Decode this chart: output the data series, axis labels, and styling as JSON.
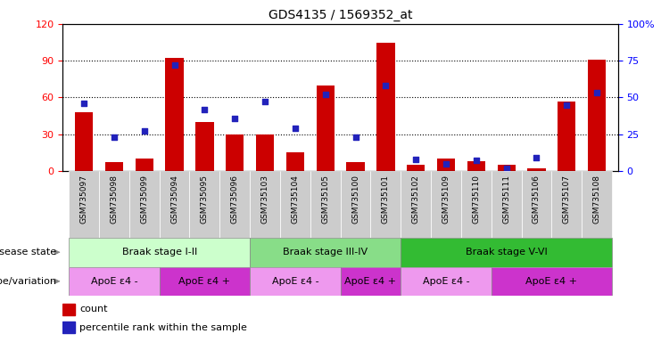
{
  "title": "GDS4135 / 1569352_at",
  "samples": [
    "GSM735097",
    "GSM735098",
    "GSM735099",
    "GSM735094",
    "GSM735095",
    "GSM735096",
    "GSM735103",
    "GSM735104",
    "GSM735105",
    "GSM735100",
    "GSM735101",
    "GSM735102",
    "GSM735109",
    "GSM735110",
    "GSM735111",
    "GSM735106",
    "GSM735107",
    "GSM735108"
  ],
  "counts": [
    48,
    7,
    10,
    92,
    40,
    30,
    30,
    15,
    70,
    7,
    105,
    5,
    10,
    8,
    5,
    2,
    57,
    91
  ],
  "percentiles": [
    46,
    23,
    27,
    72,
    42,
    36,
    47,
    29,
    52,
    23,
    58,
    8,
    5,
    7,
    2,
    9,
    45,
    53
  ],
  "ylim_left": [
    0,
    120
  ],
  "ylim_right": [
    0,
    100
  ],
  "yticks_left": [
    0,
    30,
    60,
    90,
    120
  ],
  "ytick_labels_left": [
    "0",
    "30",
    "60",
    "90",
    "120"
  ],
  "yticks_right": [
    0,
    25,
    50,
    75,
    100
  ],
  "ytick_labels_right": [
    "0",
    "25",
    "50",
    "75",
    "100%"
  ],
  "bar_color": "#cc0000",
  "dot_color": "#2222bb",
  "grid_color": "#000000",
  "disease_state_label": "disease state",
  "genotype_label": "genotype/variation",
  "disease_stages": [
    {
      "label": "Braak stage I-II",
      "start": 0,
      "end": 6,
      "color": "#ccffcc"
    },
    {
      "label": "Braak stage III-IV",
      "start": 6,
      "end": 11,
      "color": "#88dd88"
    },
    {
      "label": "Braak stage V-VI",
      "start": 11,
      "end": 18,
      "color": "#33bb33"
    }
  ],
  "genotype_groups": [
    {
      "label": "ApoE ε4 -",
      "start": 0,
      "end": 3,
      "color": "#ee99ee"
    },
    {
      "label": "ApoE ε4 +",
      "start": 3,
      "end": 6,
      "color": "#cc33cc"
    },
    {
      "label": "ApoE ε4 -",
      "start": 6,
      "end": 9,
      "color": "#ee99ee"
    },
    {
      "label": "ApoE ε4 +",
      "start": 9,
      "end": 11,
      "color": "#cc33cc"
    },
    {
      "label": "ApoE ε4 -",
      "start": 11,
      "end": 14,
      "color": "#ee99ee"
    },
    {
      "label": "ApoE ε4 +",
      "start": 14,
      "end": 18,
      "color": "#cc33cc"
    }
  ],
  "legend_count_label": "count",
  "legend_pct_label": "percentile rank within the sample",
  "bg_color": "#ffffff",
  "tick_box_color": "#cccccc"
}
